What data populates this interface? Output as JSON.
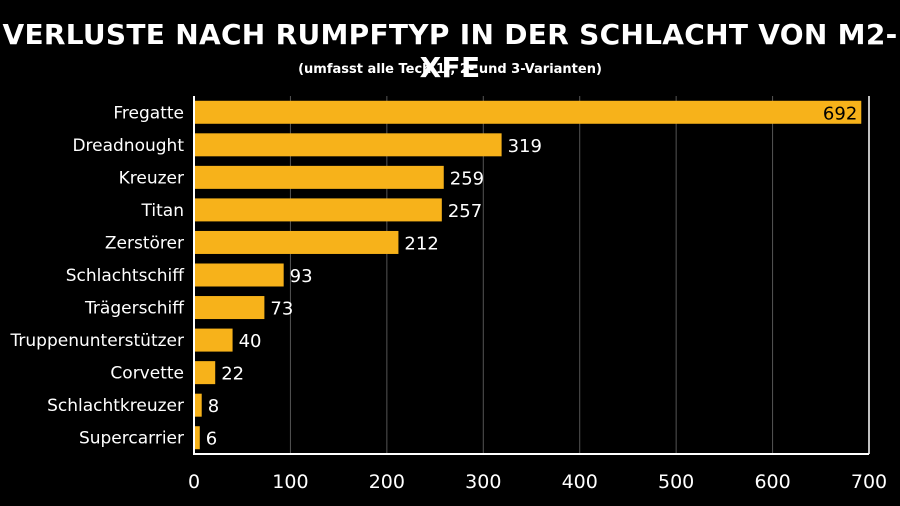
{
  "colors": {
    "background": "#000000",
    "bar": "#f7b21a",
    "text": "#ffffff",
    "grid": "#555555",
    "axis": "#ffffff"
  },
  "chart_data": {
    "type": "bar",
    "orientation": "horizontal",
    "title": "VERLUSTE NACH RUMPFTYP IN DER SCHLACHT VON M2-XFE",
    "subtitle": "(umfasst alle Tech 1-, 2- und 3-Varianten)",
    "categories": [
      "Fregatte",
      "Dreadnought",
      "Kreuzer",
      "Titan",
      "Zerstörer",
      "Schlachtschiff",
      "Trägerschiff",
      "Truppenunterstützer",
      "Corvette",
      "Schlachtkreuzer",
      "Supercarrier"
    ],
    "values": [
      692,
      319,
      259,
      257,
      212,
      93,
      73,
      40,
      22,
      8,
      6
    ],
    "xlim": [
      0,
      700
    ],
    "xticks": [
      0,
      100,
      200,
      300,
      400,
      500,
      600,
      700
    ],
    "grid": "vertical",
    "xlabel": "",
    "ylabel": ""
  }
}
